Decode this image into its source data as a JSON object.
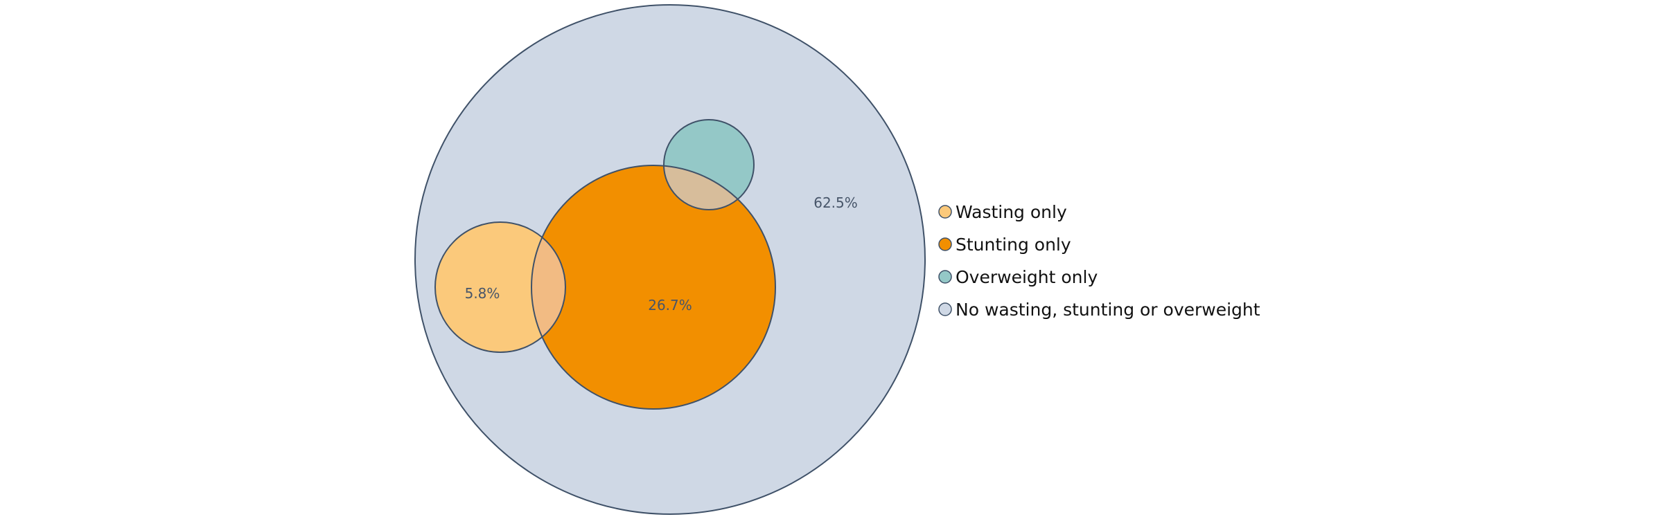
{
  "chart_data": {
    "type": "euler",
    "sets": [
      {
        "name": "Wasting only",
        "color": "#fbc97b"
      },
      {
        "name": "Stunting only",
        "color": "#f28f00"
      },
      {
        "name": "Overweight only",
        "color": "#94c8c7"
      },
      {
        "name": "No wasting, stunting or overweight",
        "color": "#cfd8e5"
      }
    ],
    "region_labels": [
      {
        "set": "Wasting only",
        "text": "5.8%"
      },
      {
        "set": "Stunting only",
        "text": "26.7%"
      },
      {
        "set": "No wasting, stunting or overweight",
        "text": "62.5%"
      }
    ],
    "overlap_colors": {
      "wasting_stunting": "#f2bb83",
      "stunting_overweight": "#d7bd9b"
    },
    "outline_color": "#3f5168",
    "legend_position": "right"
  }
}
